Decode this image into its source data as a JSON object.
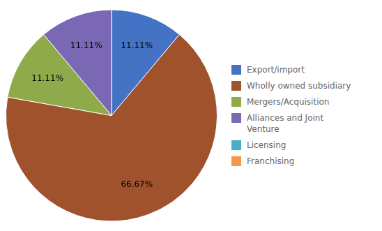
{
  "chart_data": {
    "type": "pie",
    "categories": [
      "Export/import",
      "Wholly owned subsidiary",
      "Mergers/Acquisition",
      "Alliances and Joint\nVenture",
      "Licensing",
      "Franchising"
    ],
    "values": [
      11.11,
      66.67,
      11.11,
      11.11,
      null,
      null
    ],
    "value_labels": [
      "11.11%",
      "66.67%",
      "11.11%",
      "11.11%",
      null,
      null
    ],
    "colors": [
      "#4472c4",
      "#a0522d",
      "#8faa4b",
      "#7b68b5",
      "#4bacc6",
      "#f79646"
    ],
    "data_labels": true,
    "legend": "right"
  }
}
